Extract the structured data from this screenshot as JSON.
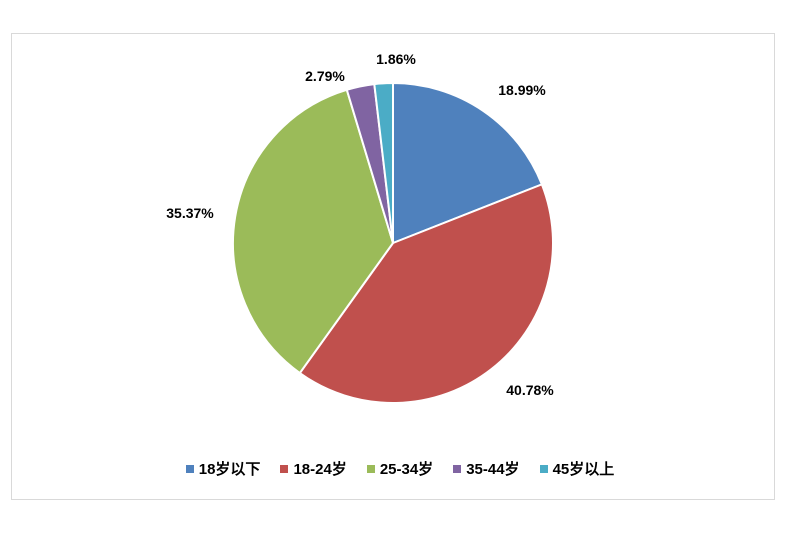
{
  "chart_data": {
    "type": "pie",
    "categories": [
      "18岁以下",
      "18-24岁",
      "25-34岁",
      "35-44岁",
      "45岁以上"
    ],
    "values": [
      18.99,
      40.78,
      35.37,
      2.79,
      1.86
    ],
    "data_labels": [
      "18.99%",
      "40.78%",
      "35.37%",
      "2.79%",
      "1.86%"
    ],
    "colors": [
      "#4F81BD",
      "#C0504D",
      "#9BBB59",
      "#8064A2",
      "#4BACC6"
    ],
    "start_angle": "12 o'clock",
    "direction": "clockwise",
    "legend_position": "bottom"
  }
}
